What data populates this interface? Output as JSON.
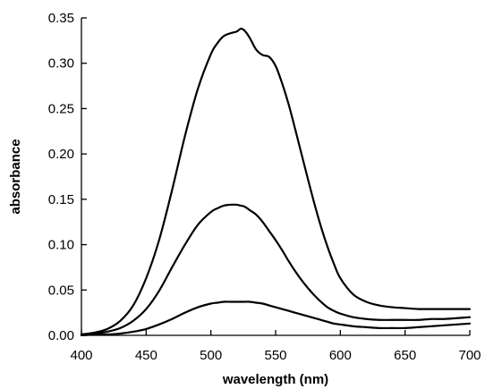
{
  "chart_data": {
    "type": "line",
    "title": "",
    "xlabel": "wavelength (nm)",
    "ylabel": "absorbance",
    "xlim": [
      400,
      700
    ],
    "ylim": [
      0,
      0.35
    ],
    "x_ticks": [
      400,
      450,
      500,
      550,
      600,
      650,
      700
    ],
    "x_tick_labels": [
      "400",
      "450",
      "500",
      "550",
      "600",
      "650",
      "700"
    ],
    "y_ticks": [
      0,
      0.05,
      0.1,
      0.15,
      0.2,
      0.25,
      0.3,
      0.35
    ],
    "y_tick_labels": [
      "0.00",
      "0.05",
      "0.10",
      "0.15",
      "0.20",
      "0.25",
      "0.30",
      "0.35"
    ],
    "grid": false,
    "line_color": "#000000",
    "x": [
      400,
      410,
      420,
      430,
      440,
      450,
      460,
      470,
      480,
      490,
      500,
      505,
      510,
      515,
      520,
      523,
      526,
      530,
      535,
      540,
      545,
      550,
      555,
      560,
      565,
      570,
      575,
      580,
      585,
      590,
      595,
      600,
      610,
      620,
      630,
      640,
      650,
      660,
      670,
      680,
      690,
      700
    ],
    "series": [
      {
        "values": [
          0.001,
          0.003,
          0.007,
          0.016,
          0.033,
          0.063,
          0.105,
          0.16,
          0.22,
          0.272,
          0.31,
          0.322,
          0.33,
          0.333,
          0.335,
          0.338,
          0.336,
          0.328,
          0.315,
          0.309,
          0.307,
          0.297,
          0.278,
          0.255,
          0.228,
          0.2,
          0.172,
          0.145,
          0.12,
          0.098,
          0.079,
          0.063,
          0.045,
          0.037,
          0.033,
          0.031,
          0.03,
          0.029,
          0.029,
          0.029,
          0.029,
          0.029
        ]
      },
      {
        "values": [
          0.001,
          0.002,
          0.004,
          0.008,
          0.016,
          0.029,
          0.049,
          0.075,
          0.1,
          0.122,
          0.136,
          0.14,
          0.143,
          0.144,
          0.144,
          0.143,
          0.142,
          0.138,
          0.133,
          0.125,
          0.115,
          0.105,
          0.094,
          0.082,
          0.071,
          0.061,
          0.052,
          0.044,
          0.037,
          0.031,
          0.027,
          0.024,
          0.02,
          0.018,
          0.017,
          0.017,
          0.017,
          0.017,
          0.018,
          0.018,
          0.019,
          0.02
        ]
      },
      {
        "values": [
          0.0,
          0.001,
          0.001,
          0.002,
          0.004,
          0.007,
          0.012,
          0.018,
          0.025,
          0.031,
          0.035,
          0.036,
          0.037,
          0.037,
          0.037,
          0.037,
          0.037,
          0.037,
          0.036,
          0.035,
          0.033,
          0.031,
          0.029,
          0.027,
          0.025,
          0.023,
          0.021,
          0.019,
          0.017,
          0.015,
          0.013,
          0.012,
          0.01,
          0.009,
          0.008,
          0.008,
          0.008,
          0.009,
          0.01,
          0.011,
          0.012,
          0.013
        ]
      }
    ]
  }
}
